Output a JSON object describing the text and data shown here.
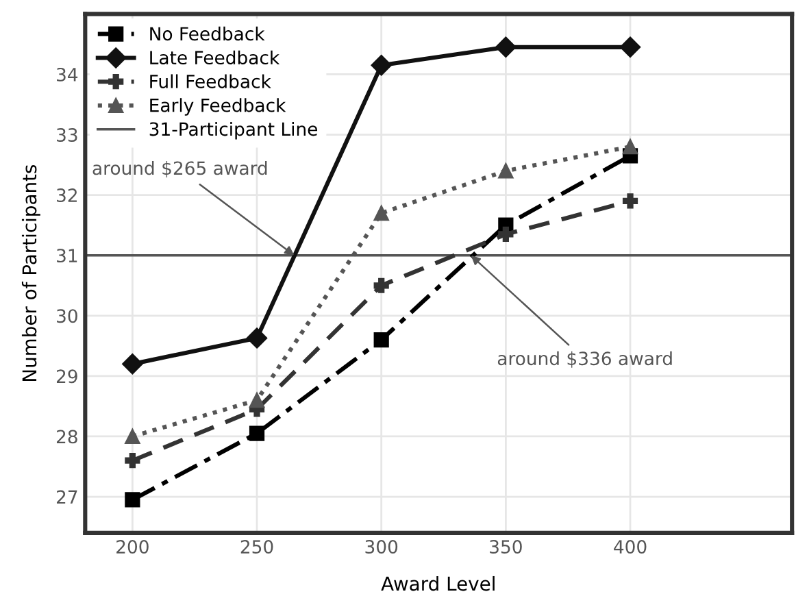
{
  "chart_data": {
    "type": "line",
    "xlabel": "Award Level",
    "ylabel": "Number of Participants",
    "x": [
      200,
      250,
      300,
      350,
      400
    ],
    "xlim": [
      181,
      465
    ],
    "ylim": [
      26.4,
      35
    ],
    "xticks": [
      200,
      250,
      300,
      350,
      400
    ],
    "yticks": [
      27,
      28,
      29,
      30,
      31,
      32,
      33,
      34
    ],
    "grid": true,
    "legend": "top left",
    "series": [
      {
        "name": "No Feedback",
        "color": "#000000",
        "marker": "square",
        "line_style": "dashdot",
        "values": [
          26.95,
          28.05,
          29.6,
          31.5,
          32.65
        ]
      },
      {
        "name": "Late Feedback",
        "color": "#111111",
        "marker": "diamond",
        "line_style": "solid",
        "values": [
          29.2,
          29.63,
          34.15,
          34.45,
          34.45
        ]
      },
      {
        "name": "Full Feedback",
        "color": "#333333",
        "marker": "cross",
        "line_style": "dashed",
        "values": [
          27.6,
          28.45,
          30.5,
          31.35,
          31.9
        ]
      },
      {
        "name": "Early Feedback",
        "color": "#555555",
        "marker": "triangle",
        "line_style": "dotted",
        "values": [
          28.0,
          28.6,
          31.7,
          32.4,
          32.8
        ]
      }
    ],
    "ref_lines": [
      {
        "axis": "y",
        "value": 31,
        "label": "31-Participant Line",
        "color": "#555555"
      }
    ],
    "annotations": [
      {
        "text": "around $265 award",
        "x": 265,
        "y": 31
      },
      {
        "text": "around $336 award",
        "x": 336,
        "y": 31
      }
    ]
  }
}
